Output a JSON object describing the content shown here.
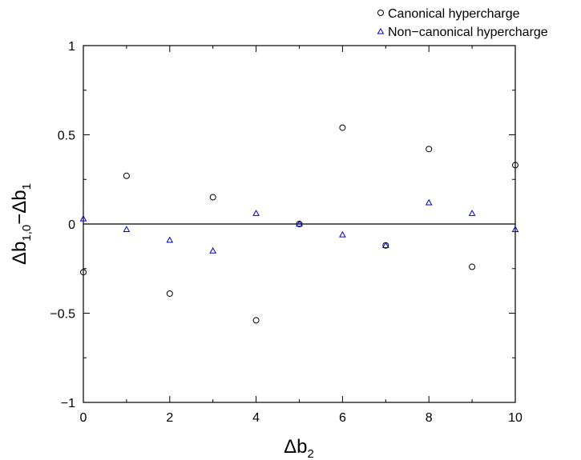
{
  "chart_data": {
    "type": "scatter",
    "xlabel": "Δb",
    "xlabel_sub": "2",
    "ylabel": "Δb",
    "ylabel_sub1": "1,0",
    "ylabel_mid": "−Δb",
    "ylabel_sub2": "1",
    "xlim": [
      0,
      10
    ],
    "ylim": [
      -1,
      1
    ],
    "x_ticks": [
      0,
      2,
      4,
      6,
      8,
      10
    ],
    "x_tick_labels": [
      "0",
      "2",
      "4",
      "6",
      "8",
      "10"
    ],
    "y_ticks": [
      -1,
      -0.5,
      0,
      0.5,
      1
    ],
    "y_tick_labels": [
      "−1",
      "−0.5",
      "0",
      "0.5",
      "1"
    ],
    "reference_line_y": 0,
    "legend_position": "top-right",
    "series": [
      {
        "name": "Canonical hypercharge",
        "marker": "circle",
        "color": "#000000",
        "x": [
          0,
          1,
          2,
          3,
          4,
          5,
          6,
          7,
          8,
          9,
          10
        ],
        "y": [
          -0.27,
          0.27,
          -0.39,
          0.15,
          -0.54,
          0.0,
          0.54,
          -0.12,
          0.42,
          -0.24,
          0.33
        ]
      },
      {
        "name": "Non−canonical hypercharge",
        "marker": "triangle",
        "color": "#0000cc",
        "x": [
          0,
          1,
          2,
          3,
          4,
          5,
          6,
          7,
          8,
          9,
          10
        ],
        "y": [
          0.03,
          -0.03,
          -0.09,
          -0.15,
          0.06,
          0.0,
          -0.06,
          -0.12,
          0.12,
          0.06,
          -0.03
        ]
      }
    ]
  }
}
